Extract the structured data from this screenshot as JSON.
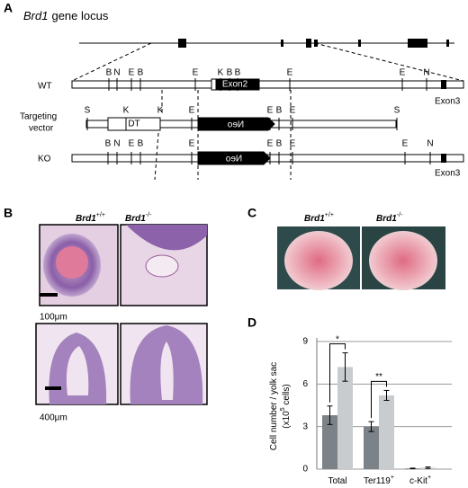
{
  "panel_a": {
    "label": "A",
    "title": {
      "gene": "Brd1",
      "text": "gene locus"
    },
    "wt": {
      "label": "WT",
      "sites": [
        "B",
        "N",
        "E",
        "B",
        "E",
        "K",
        "B",
        "B",
        "E",
        "E",
        "N"
      ],
      "exon2": "Exon2",
      "exon3": "Exon3"
    },
    "vector": {
      "label": [
        "Targeting",
        "vector"
      ],
      "sites": [
        "S",
        "K",
        "K",
        "E",
        "E",
        "B",
        "E",
        "S"
      ],
      "dt": "DT",
      "neo": "Neo"
    },
    "ko": {
      "label": "KO",
      "sites": [
        "B",
        "N",
        "E",
        "B",
        "E",
        "E",
        "B",
        "E",
        "E",
        "N"
      ],
      "neo": "Neo",
      "exon3": "Exon3"
    }
  },
  "panel_b": {
    "label": "B",
    "genotypes": [
      {
        "gene": "Brd1",
        "sup": "+/+"
      },
      {
        "gene": "Brd1",
        "sup": "-/-"
      }
    ],
    "scale_bars": [
      "100μm",
      "400μm"
    ]
  },
  "panel_c": {
    "label": "C",
    "genotypes": [
      {
        "gene": "Brd1",
        "sup": "+/+"
      },
      {
        "gene": "Brd1",
        "sup": "-/-"
      }
    ]
  },
  "panel_d": {
    "label": "D"
  },
  "chart_data": {
    "type": "bar",
    "y_label": {
      "line1": "Cell number / yolk sac",
      "unit_pre": "(x10",
      "unit_exp": "5",
      "unit_post": " cells)"
    },
    "categories": [
      {
        "text": "Total"
      },
      {
        "text": "Ter119",
        "sup": "+"
      },
      {
        "text": "c-Kit",
        "sup": "+"
      }
    ],
    "series": [
      {
        "color": "#7b8288",
        "values": [
          3.8,
          3.0,
          0.05
        ],
        "errors": [
          0.65,
          0.35,
          0.02
        ]
      },
      {
        "color": "#c8ccce",
        "values": [
          7.2,
          5.2,
          0.1
        ],
        "errors": [
          1.0,
          0.35,
          0.05
        ]
      }
    ],
    "ylim": [
      0,
      9
    ],
    "yticks": [
      0,
      3,
      6,
      9
    ],
    "grid": true,
    "annotations": [
      {
        "text": "*",
        "category": 0
      },
      {
        "text": "**",
        "category": 1
      }
    ]
  }
}
